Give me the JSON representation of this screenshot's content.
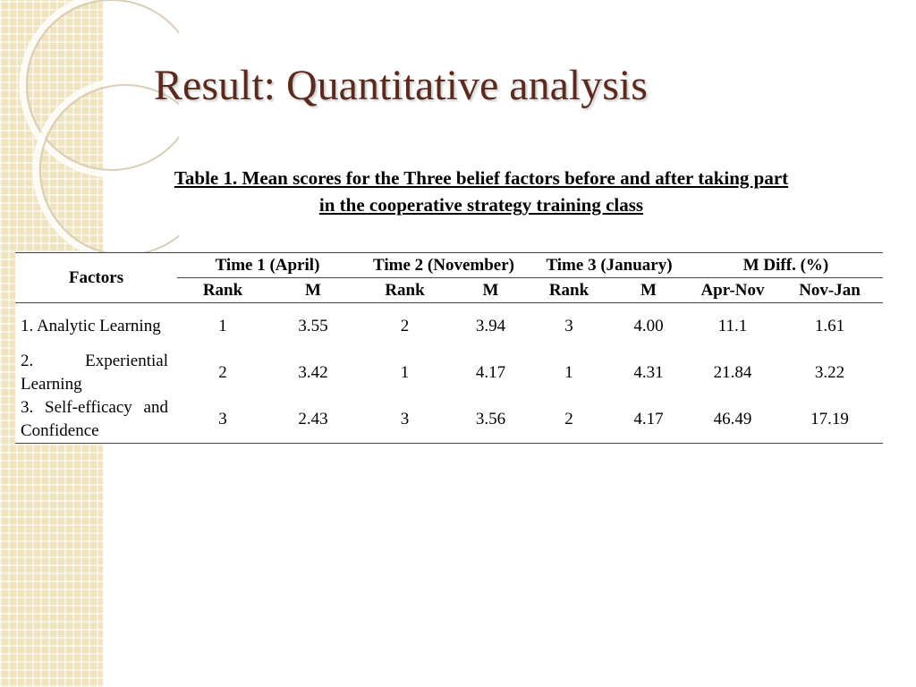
{
  "slide": {
    "title": "Result: Quantitative analysis",
    "caption": [
      "Table 1. Mean scores for the Three belief factors before and after taking part",
      "in the  cooperative strategy training class"
    ]
  },
  "table": {
    "corner": "Factors",
    "groups": [
      "Time 1 (April)",
      "Time 2 (November)",
      "Time 3 (January)",
      "M Diff. (%)"
    ],
    "subheaders": [
      "Rank",
      "M",
      "Rank",
      "M",
      "Rank",
      "M",
      "Apr-Nov",
      "Nov-Jan"
    ],
    "rows": [
      [
        "1. Analytic Learning",
        "1",
        "3.55",
        "2",
        "3.94",
        "3",
        "4.00",
        "11.1",
        "1.61"
      ],
      [
        "2. Experiential Learning",
        "2",
        "3.42",
        "1",
        "4.17",
        "1",
        "4.31",
        "21.84",
        "3.22"
      ],
      [
        "3. Self-efficacy and Confidence",
        "3",
        "2.43",
        "3",
        "3.56",
        "2",
        "4.17",
        "46.49",
        "17.19"
      ]
    ]
  }
}
